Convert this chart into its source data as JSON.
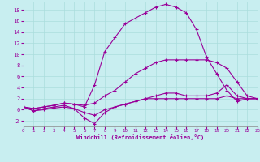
{
  "xlabel": "Windchill (Refroidissement éolien,°C)",
  "background_color": "#c8eef0",
  "grid_color": "#aadddd",
  "line_color": "#990099",
  "xlim": [
    0,
    23
  ],
  "ylim": [
    -3,
    19.5
  ],
  "xticks": [
    0,
    1,
    2,
    3,
    4,
    5,
    6,
    7,
    8,
    9,
    10,
    11,
    12,
    13,
    14,
    15,
    16,
    17,
    18,
    19,
    20,
    21,
    22,
    23
  ],
  "yticks": [
    -2,
    0,
    2,
    4,
    6,
    8,
    10,
    12,
    14,
    16,
    18
  ],
  "curve1_x": [
    0,
    1,
    2,
    3,
    4,
    5,
    6,
    7,
    8,
    9,
    10,
    11,
    12,
    13,
    14,
    15,
    16,
    17,
    18,
    19,
    20,
    21,
    22,
    23
  ],
  "curve1_y": [
    0.5,
    0.2,
    0.5,
    0.8,
    1.2,
    1.0,
    0.8,
    1.2,
    2.5,
    3.5,
    5.0,
    6.5,
    7.5,
    8.5,
    9.0,
    9.0,
    9.0,
    9.0,
    9.0,
    8.5,
    7.5,
    5.0,
    2.5,
    2.0
  ],
  "curve2_x": [
    0,
    1,
    2,
    3,
    4,
    5,
    6,
    7,
    8,
    9,
    10,
    11,
    12,
    13,
    14,
    15,
    16,
    17,
    18,
    19,
    20,
    21,
    22,
    23
  ],
  "curve2_y": [
    0.5,
    0.2,
    0.5,
    0.8,
    1.2,
    1.0,
    0.5,
    4.5,
    10.5,
    13.0,
    15.5,
    16.5,
    17.5,
    18.5,
    19.0,
    18.5,
    17.5,
    14.5,
    9.5,
    6.5,
    3.5,
    1.5,
    2.0,
    2.0
  ],
  "curve3_x": [
    0,
    1,
    2,
    3,
    4,
    5,
    6,
    7,
    8,
    9,
    10,
    11,
    12,
    13,
    14,
    15,
    16,
    17,
    18,
    19,
    20,
    21,
    22,
    23
  ],
  "curve3_y": [
    0.5,
    -0.2,
    0.2,
    0.5,
    0.8,
    0.2,
    -1.5,
    -2.5,
    -0.5,
    0.5,
    1.0,
    1.5,
    2.0,
    2.5,
    3.0,
    3.0,
    2.5,
    2.5,
    2.5,
    3.0,
    4.5,
    2.5,
    2.0,
    2.0
  ],
  "curve4_x": [
    0,
    1,
    2,
    3,
    4,
    5,
    6,
    7,
    8,
    9,
    10,
    11,
    12,
    13,
    14,
    15,
    16,
    17,
    18,
    19,
    20,
    21,
    22,
    23
  ],
  "curve4_y": [
    0.5,
    -0.2,
    0.0,
    0.3,
    0.5,
    0.2,
    -0.5,
    -1.0,
    0.0,
    0.5,
    1.0,
    1.5,
    2.0,
    2.0,
    2.0,
    2.0,
    2.0,
    2.0,
    2.0,
    2.0,
    2.5,
    2.0,
    2.0,
    2.0
  ]
}
